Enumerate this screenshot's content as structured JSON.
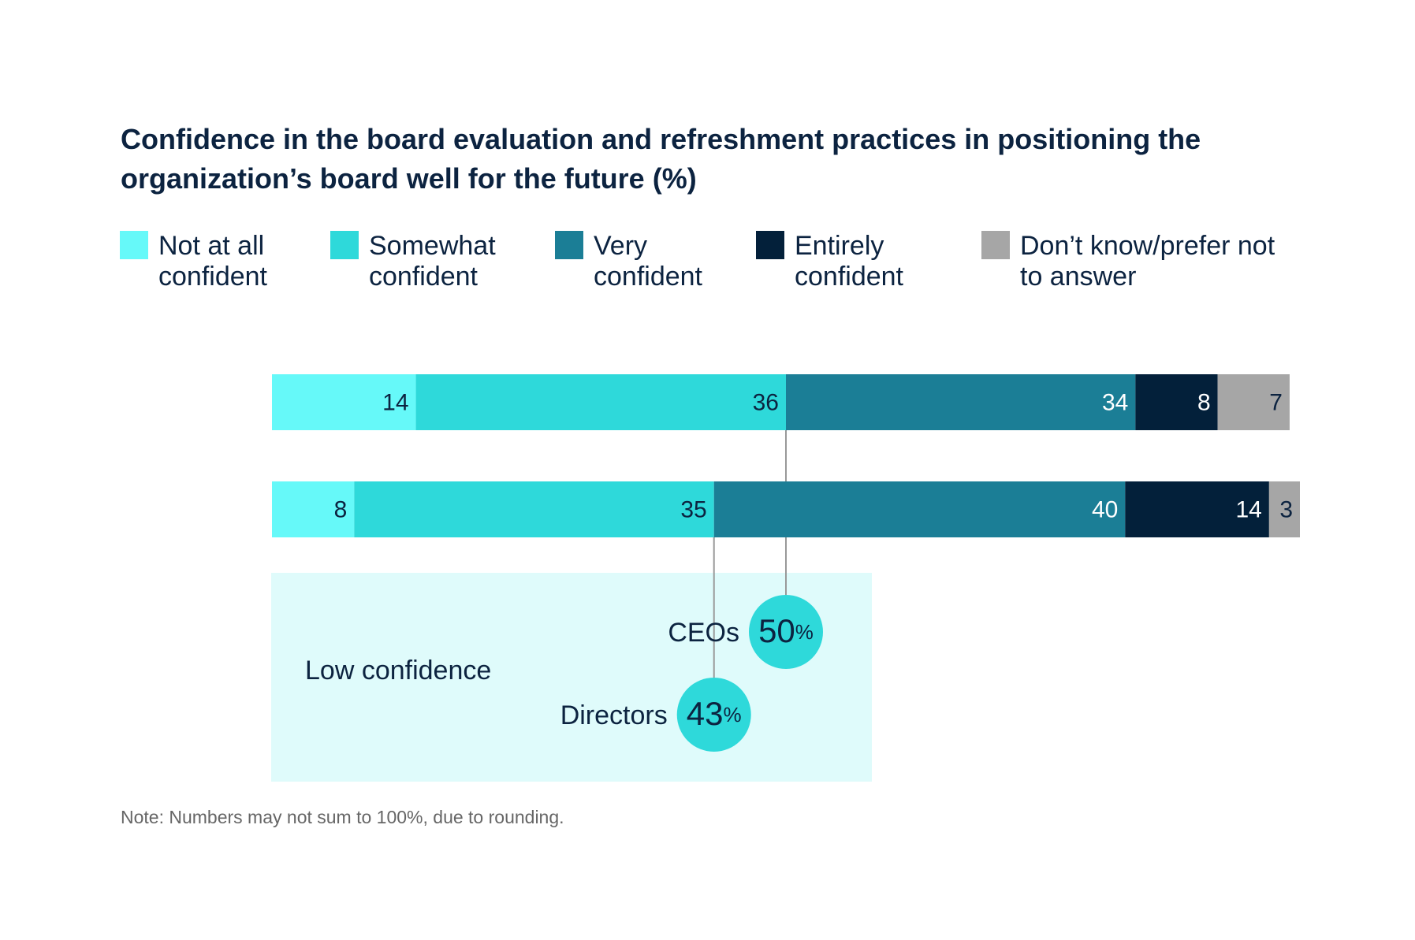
{
  "chart_data": {
    "type": "stacked-bar",
    "orientation": "horizontal",
    "title": "Confidence in the board evaluation and refreshment practices in positioning the organization’s board well for the future (%)",
    "categories": [
      "CEOs",
      "Directors"
    ],
    "series": [
      {
        "name": "Not at all confident",
        "color": "#66f9f9",
        "values": [
          14,
          8
        ]
      },
      {
        "name": "Somewhat confident",
        "color": "#2ed9da",
        "values": [
          36,
          35
        ]
      },
      {
        "name": "Very confident",
        "color": "#1b7e96",
        "values": [
          34,
          40
        ]
      },
      {
        "name": "Entirely confident",
        "color": "#03203a",
        "values": [
          8,
          14
        ]
      },
      {
        "name": "Don’t know/prefer not to answer",
        "color": "#a6a6a6",
        "values": [
          7,
          3
        ]
      }
    ],
    "xlim": [
      0,
      100
    ],
    "annotation": {
      "label": "Low confidence",
      "values": [
        50,
        43
      ],
      "unit": "%"
    },
    "note": "Note: Numbers may not sum to 100%, due to rounding."
  }
}
